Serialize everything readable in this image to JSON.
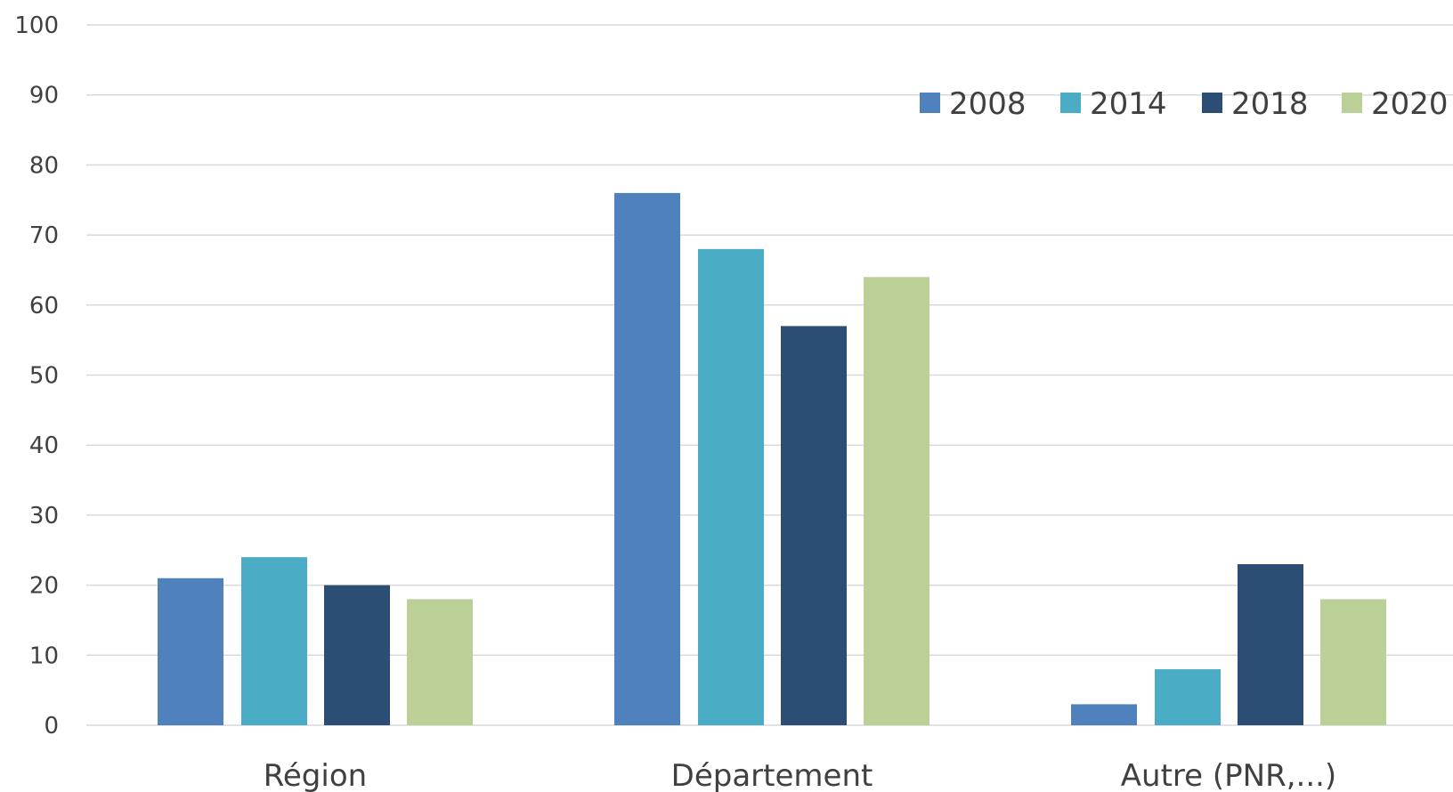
{
  "chart_data": {
    "type": "bar",
    "categories": [
      "Région",
      "Département",
      "Autre (PNR,...)"
    ],
    "series": [
      {
        "name": "2008",
        "color": "#4f81bd",
        "values": [
          21,
          76,
          3
        ]
      },
      {
        "name": "2014",
        "color": "#4bacc6",
        "values": [
          24,
          68,
          8
        ]
      },
      {
        "name": "2018",
        "color": "#2c4e74",
        "values": [
          20,
          57,
          23
        ]
      },
      {
        "name": "2020",
        "color": "#bbd097",
        "values": [
          18,
          64,
          18
        ]
      }
    ],
    "ylim": [
      0,
      100
    ],
    "yticks": [
      0,
      10,
      20,
      30,
      40,
      50,
      60,
      70,
      80,
      90,
      100
    ],
    "grid": true,
    "legend_position": "top-right",
    "title": "",
    "xlabel": "",
    "ylabel": ""
  }
}
